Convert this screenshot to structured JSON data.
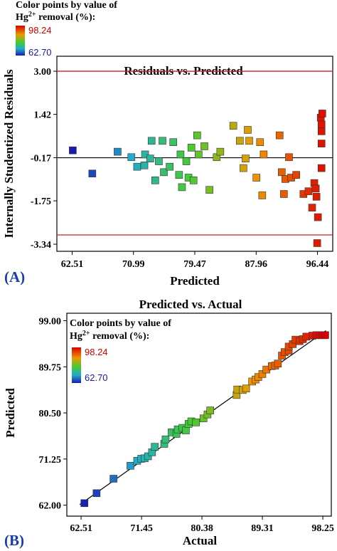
{
  "colorbar": {
    "title_line1": "Color points by value of",
    "title_line2_pre": "Hg",
    "title_line2_sup": "2+",
    "title_line2_post": " removal (%):",
    "max_label": "98.24",
    "min_label": "62.70",
    "max_color": "#cc0000",
    "min_color": "#1a1aa0"
  },
  "chart_data": [
    {
      "panel_label": "(A)",
      "type": "scatter",
      "title": "Residuals vs. Predicted",
      "xlabel": "Predicted",
      "ylabel": "Internally Studentized Residuals",
      "xlim": [
        60.4,
        98.55
      ],
      "ylim": [
        -3.6,
        3.55
      ],
      "xticks": [
        "62.51",
        "70.99",
        "79.47",
        "87.96",
        "96.44"
      ],
      "yticks": [
        "-3.34",
        "-1.75",
        "-0.17",
        "1.42",
        "3.00"
      ],
      "limit_lines": [
        3.0,
        -3.0
      ],
      "zero_line": -0.17,
      "points": [
        {
          "x": 62.6,
          "y": 0.1
        },
        {
          "x": 65.3,
          "y": -0.75
        },
        {
          "x": 68.8,
          "y": 0.05
        },
        {
          "x": 70.7,
          "y": -0.15
        },
        {
          "x": 71.5,
          "y": -0.5
        },
        {
          "x": 72.5,
          "y": -0.45
        },
        {
          "x": 72.6,
          "y": -0.05
        },
        {
          "x": 73.3,
          "y": -0.2
        },
        {
          "x": 73.5,
          "y": 0.45
        },
        {
          "x": 74.0,
          "y": -1.0
        },
        {
          "x": 74.5,
          "y": -0.3
        },
        {
          "x": 75.0,
          "y": 0.45
        },
        {
          "x": 75.2,
          "y": -0.7
        },
        {
          "x": 76.0,
          "y": -0.5
        },
        {
          "x": 76.5,
          "y": 0.4
        },
        {
          "x": 77.3,
          "y": -0.8
        },
        {
          "x": 77.5,
          "y": -0.05
        },
        {
          "x": 77.7,
          "y": -1.25
        },
        {
          "x": 78.3,
          "y": -0.3
        },
        {
          "x": 78.6,
          "y": -0.9
        },
        {
          "x": 79.0,
          "y": 0.2
        },
        {
          "x": 79.3,
          "y": -1.0
        },
        {
          "x": 79.8,
          "y": 0.65
        },
        {
          "x": 80.0,
          "y": -0.05
        },
        {
          "x": 80.8,
          "y": 0.25
        },
        {
          "x": 81.5,
          "y": -1.35
        },
        {
          "x": 82.5,
          "y": -0.15
        },
        {
          "x": 83.0,
          "y": 0.05
        },
        {
          "x": 84.8,
          "y": 1.0
        },
        {
          "x": 85.7,
          "y": 0.45
        },
        {
          "x": 86.2,
          "y": -0.55
        },
        {
          "x": 86.5,
          "y": -0.2
        },
        {
          "x": 86.8,
          "y": 0.85
        },
        {
          "x": 87.0,
          "y": 0.45
        },
        {
          "x": 88.0,
          "y": -0.9
        },
        {
          "x": 88.5,
          "y": 0.4
        },
        {
          "x": 88.8,
          "y": -1.55
        },
        {
          "x": 89.0,
          "y": -0.05
        },
        {
          "x": 91.2,
          "y": 0.65
        },
        {
          "x": 91.5,
          "y": -0.7
        },
        {
          "x": 91.8,
          "y": -1.5
        },
        {
          "x": 92.0,
          "y": -0.95
        },
        {
          "x": 92.5,
          "y": -0.15
        },
        {
          "x": 92.8,
          "y": -0.9
        },
        {
          "x": 93.5,
          "y": -0.8
        },
        {
          "x": 94.5,
          "y": -1.5
        },
        {
          "x": 95.2,
          "y": -1.4
        },
        {
          "x": 95.7,
          "y": -2.0
        },
        {
          "x": 96.0,
          "y": -1.1
        },
        {
          "x": 96.2,
          "y": -1.3
        },
        {
          "x": 96.3,
          "y": -1.6
        },
        {
          "x": 96.4,
          "y": -3.3
        },
        {
          "x": 96.5,
          "y": -2.35
        },
        {
          "x": 96.9,
          "y": 1.3
        },
        {
          "x": 97.0,
          "y": 1.05
        },
        {
          "x": 97.0,
          "y": 0.8
        },
        {
          "x": 97.0,
          "y": 0.35
        },
        {
          "x": 97.0,
          "y": -0.55
        },
        {
          "x": 97.1,
          "y": 1.45
        }
      ]
    },
    {
      "panel_label": "(B)",
      "type": "scatter",
      "title": "Predicted vs. Actual",
      "xlabel": "Actual",
      "ylabel": "Predicted",
      "xlim": [
        60.4,
        99.5
      ],
      "ylim": [
        59.8,
        100.5
      ],
      "xticks": [
        "62.51",
        "71.45",
        "80.38",
        "89.31",
        "98.25"
      ],
      "yticks": [
        "62.00",
        "71.25",
        "80.50",
        "89.75",
        "99.00"
      ],
      "fit_line": [
        [
          62.3,
          62.1
        ],
        [
          98.7,
          97.0
        ]
      ],
      "points": [
        {
          "x": 63.0,
          "y": 62.4
        },
        {
          "x": 64.8,
          "y": 64.4
        },
        {
          "x": 67.3,
          "y": 67.3
        },
        {
          "x": 69.8,
          "y": 69.9
        },
        {
          "x": 70.8,
          "y": 70.9
        },
        {
          "x": 71.4,
          "y": 71.3
        },
        {
          "x": 71.9,
          "y": 71.4
        },
        {
          "x": 72.4,
          "y": 71.8
        },
        {
          "x": 73.0,
          "y": 72.6
        },
        {
          "x": 73.4,
          "y": 73.7
        },
        {
          "x": 74.8,
          "y": 74.3
        },
        {
          "x": 75.0,
          "y": 75.2
        },
        {
          "x": 75.9,
          "y": 76.6
        },
        {
          "x": 76.6,
          "y": 76.3
        },
        {
          "x": 76.8,
          "y": 77.2
        },
        {
          "x": 77.5,
          "y": 77.5
        },
        {
          "x": 78.0,
          "y": 77.0
        },
        {
          "x": 78.4,
          "y": 78.3
        },
        {
          "x": 78.8,
          "y": 78.8
        },
        {
          "x": 79.5,
          "y": 78.6
        },
        {
          "x": 80.6,
          "y": 79.4
        },
        {
          "x": 81.2,
          "y": 80.2
        },
        {
          "x": 81.6,
          "y": 81.0
        },
        {
          "x": 85.5,
          "y": 84.1
        },
        {
          "x": 85.6,
          "y": 85.2
        },
        {
          "x": 86.4,
          "y": 85.1
        },
        {
          "x": 86.9,
          "y": 85.4
        },
        {
          "x": 87.8,
          "y": 86.8
        },
        {
          "x": 88.3,
          "y": 87.2
        },
        {
          "x": 88.7,
          "y": 87.7
        },
        {
          "x": 89.3,
          "y": 88.3
        },
        {
          "x": 89.9,
          "y": 89.2
        },
        {
          "x": 90.7,
          "y": 89.9
        },
        {
          "x": 91.2,
          "y": 90.0
        },
        {
          "x": 91.6,
          "y": 90.4
        },
        {
          "x": 92.2,
          "y": 92.0
        },
        {
          "x": 92.6,
          "y": 92.7
        },
        {
          "x": 93.2,
          "y": 93.0
        },
        {
          "x": 93.2,
          "y": 93.8
        },
        {
          "x": 93.8,
          "y": 94.3
        },
        {
          "x": 94.2,
          "y": 95.2
        },
        {
          "x": 94.8,
          "y": 94.9
        },
        {
          "x": 95.3,
          "y": 95.3
        },
        {
          "x": 95.8,
          "y": 95.8
        },
        {
          "x": 96.7,
          "y": 96.0
        },
        {
          "x": 97.3,
          "y": 96.1
        },
        {
          "x": 97.8,
          "y": 96.1
        },
        {
          "x": 98.2,
          "y": 96.1
        },
        {
          "x": 98.6,
          "y": 96.1
        }
      ]
    }
  ]
}
